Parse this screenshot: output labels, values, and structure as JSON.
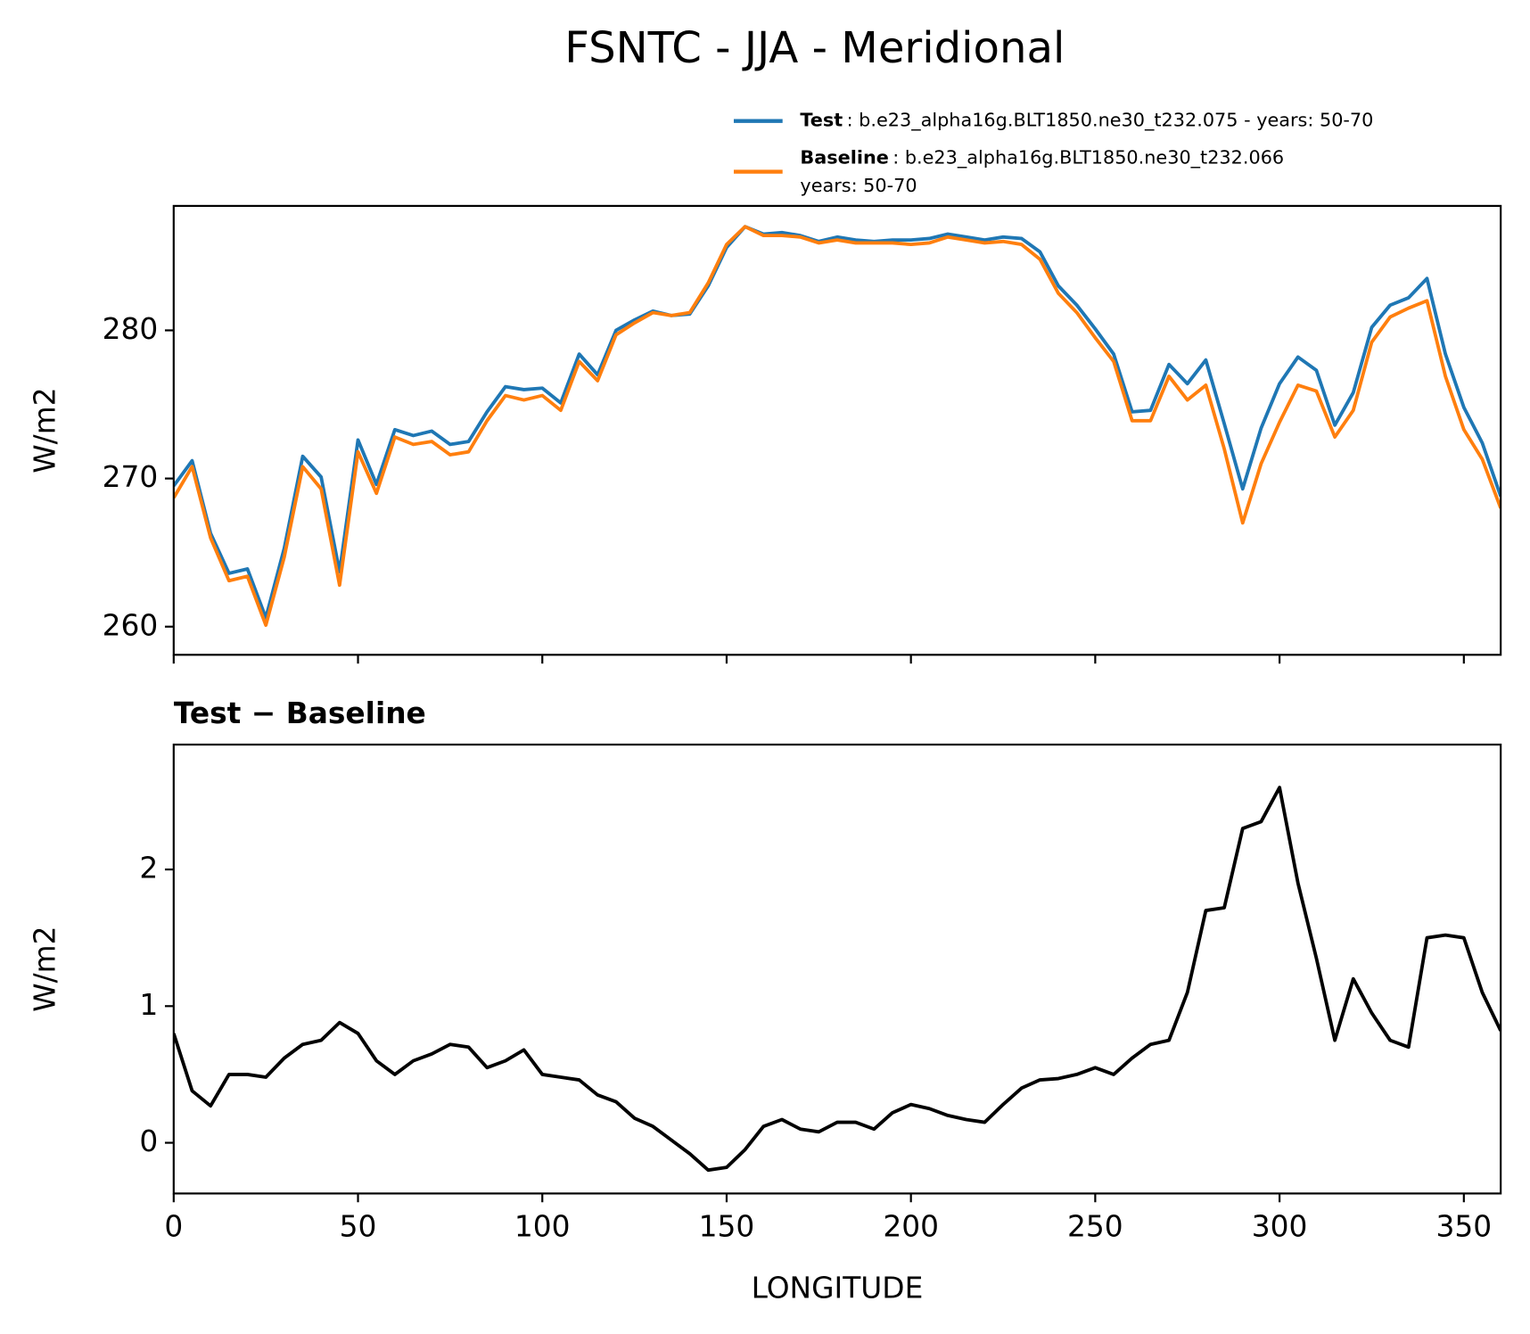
{
  "title": "FSNTC - JJA - Meridional",
  "chart_data": [
    {
      "type": "line",
      "ylabel": "W/m2",
      "x": [
        0,
        5,
        10,
        15,
        20,
        25,
        30,
        35,
        40,
        45,
        50,
        55,
        60,
        65,
        70,
        75,
        80,
        85,
        90,
        95,
        100,
        105,
        110,
        115,
        120,
        125,
        130,
        135,
        140,
        145,
        150,
        155,
        160,
        165,
        170,
        175,
        180,
        185,
        190,
        195,
        200,
        205,
        210,
        215,
        220,
        225,
        230,
        235,
        240,
        245,
        250,
        255,
        260,
        265,
        270,
        275,
        280,
        285,
        290,
        295,
        300,
        305,
        310,
        315,
        320,
        325,
        330,
        335,
        340,
        345,
        350,
        355,
        360
      ],
      "xlim": [
        0,
        360
      ],
      "xticks": [
        0,
        50,
        100,
        150,
        200,
        250,
        300,
        350
      ],
      "xticklabels": false,
      "ylim": [
        258.1,
        288.4
      ],
      "yticks": [
        260,
        270,
        280
      ],
      "series": [
        {
          "name": "Test",
          "description": ": b.e23_alpha16g.BLT1850.ne30_t232.075 - years: 50-70",
          "color": "#1f77b4",
          "values": [
            269.5,
            271.2,
            266.3,
            263.6,
            263.9,
            260.6,
            265.3,
            271.5,
            270.1,
            263.7,
            272.6,
            269.6,
            273.3,
            272.9,
            273.2,
            272.3,
            272.5,
            274.5,
            276.2,
            276.0,
            276.1,
            275.1,
            278.4,
            277.0,
            280.0,
            280.7,
            281.3,
            281.0,
            281.1,
            283.0,
            285.6,
            287.0,
            286.5,
            286.6,
            286.4,
            286.0,
            286.3,
            286.1,
            286.0,
            286.1,
            286.1,
            286.2,
            286.5,
            286.3,
            286.1,
            286.3,
            286.2,
            285.3,
            283.0,
            281.7,
            280.1,
            278.4,
            274.5,
            274.6,
            277.7,
            276.4,
            278.0,
            273.7,
            269.3,
            273.4,
            276.4,
            278.2,
            277.3,
            273.6,
            275.8,
            280.2,
            281.7,
            282.2,
            283.5,
            278.4,
            274.8,
            272.4,
            268.8
          ]
        },
        {
          "name": "Baseline",
          "description": [
            ": b.e23_alpha16g.BLT1850.ne30_t232.066",
            "years: 50-70"
          ],
          "color": "#ff7f0e",
          "values": [
            268.7,
            270.8,
            266.0,
            263.1,
            263.4,
            260.1,
            264.7,
            270.8,
            269.3,
            262.8,
            271.8,
            269.0,
            272.8,
            272.3,
            272.5,
            271.6,
            271.8,
            273.9,
            275.6,
            275.3,
            275.6,
            274.6,
            277.9,
            276.6,
            279.7,
            280.5,
            281.2,
            281.0,
            281.2,
            283.2,
            285.8,
            287.0,
            286.4,
            286.4,
            286.3,
            285.9,
            286.1,
            285.9,
            285.9,
            285.9,
            285.8,
            285.9,
            286.3,
            286.1,
            285.9,
            286.0,
            285.8,
            284.8,
            282.5,
            281.2,
            279.5,
            277.9,
            273.9,
            273.9,
            276.9,
            275.3,
            276.3,
            272.0,
            267.0,
            271.0,
            273.8,
            276.3,
            275.9,
            272.8,
            274.6,
            279.2,
            280.9,
            281.5,
            282.0,
            276.9,
            273.3,
            271.3,
            268.0
          ]
        }
      ]
    },
    {
      "type": "line",
      "title": "Test − Baseline",
      "xlabel": "LONGITUDE",
      "ylabel": "W/m2",
      "x": [
        0,
        5,
        10,
        15,
        20,
        25,
        30,
        35,
        40,
        45,
        50,
        55,
        60,
        65,
        70,
        75,
        80,
        85,
        90,
        95,
        100,
        105,
        110,
        115,
        120,
        125,
        130,
        135,
        140,
        145,
        150,
        155,
        160,
        165,
        170,
        175,
        180,
        185,
        190,
        195,
        200,
        205,
        210,
        215,
        220,
        225,
        230,
        235,
        240,
        245,
        250,
        255,
        260,
        265,
        270,
        275,
        280,
        285,
        290,
        295,
        300,
        305,
        310,
        315,
        320,
        325,
        330,
        335,
        340,
        345,
        350,
        355,
        360
      ],
      "xlim": [
        0,
        360
      ],
      "xticks": [
        0,
        50,
        100,
        150,
        200,
        250,
        300,
        350
      ],
      "xticklabels": true,
      "ylim": [
        -0.371,
        2.914
      ],
      "yticks": [
        0,
        1,
        2
      ],
      "series": [
        {
          "color": "#000000",
          "values": [
            0.8,
            0.38,
            0.27,
            0.5,
            0.5,
            0.48,
            0.62,
            0.72,
            0.75,
            0.88,
            0.8,
            0.6,
            0.5,
            0.6,
            0.65,
            0.72,
            0.7,
            0.55,
            0.6,
            0.68,
            0.5,
            0.48,
            0.46,
            0.35,
            0.3,
            0.18,
            0.12,
            0.02,
            -0.08,
            -0.2,
            -0.18,
            -0.05,
            0.12,
            0.17,
            0.1,
            0.08,
            0.15,
            0.15,
            0.1,
            0.22,
            0.28,
            0.25,
            0.2,
            0.17,
            0.15,
            0.28,
            0.4,
            0.46,
            0.47,
            0.5,
            0.55,
            0.5,
            0.62,
            0.72,
            0.75,
            1.1,
            1.7,
            1.72,
            2.3,
            2.35,
            2.6,
            1.9,
            1.35,
            0.75,
            1.2,
            0.95,
            0.75,
            0.7,
            1.5,
            1.52,
            1.5,
            1.1,
            0.82
          ]
        }
      ]
    }
  ]
}
